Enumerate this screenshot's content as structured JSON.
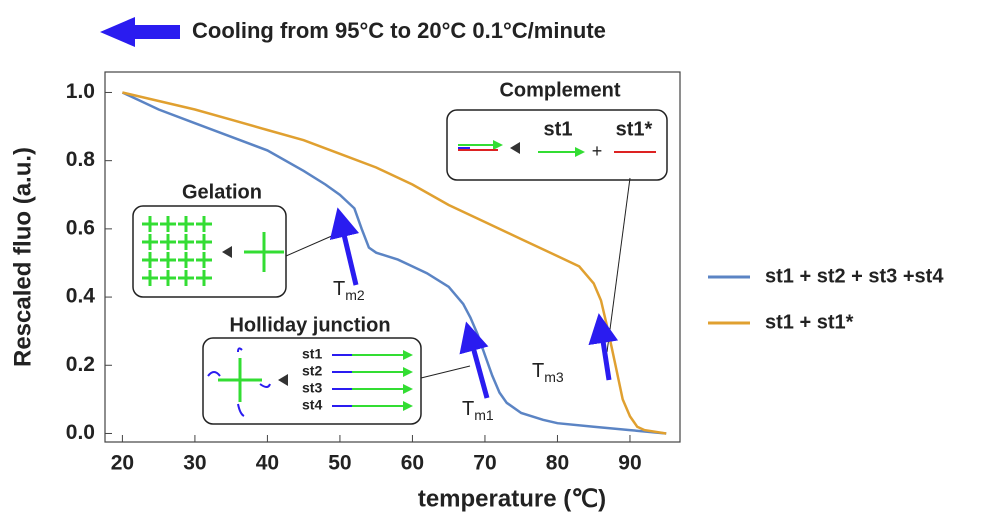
{
  "chart_data": {
    "type": "line",
    "title": "Cooling from 95°C to 20°C 0.1°C/minute",
    "x_label": "temperature (℃)",
    "y_label": "Rescaled fluo (a.u.)",
    "xlim": [
      17.6,
      96.9
    ],
    "ylim": [
      -0.025,
      1.06
    ],
    "xticks": [
      20,
      30,
      40,
      50,
      60,
      70,
      80,
      90
    ],
    "yticks": [
      {
        "value": 0,
        "label": "0.0"
      },
      0.2,
      0.4,
      0.6,
      0.8,
      {
        "value": 1,
        "label": "1.0"
      }
    ],
    "grid": false,
    "legend": "right",
    "series": [
      {
        "name": "st1 + st2 + st3 +st4",
        "color": "#5b84c4",
        "x": [
          20,
          22,
          25,
          30,
          35,
          40,
          45,
          48,
          50,
          52,
          53,
          54,
          55,
          58,
          60,
          62,
          65,
          67,
          68,
          69,
          70,
          71,
          72,
          73,
          75,
          78,
          80,
          85,
          90,
          95
        ],
        "values": [
          1.0,
          0.98,
          0.95,
          0.91,
          0.87,
          0.83,
          0.77,
          0.73,
          0.7,
          0.66,
          0.6,
          0.545,
          0.53,
          0.51,
          0.49,
          0.47,
          0.43,
          0.38,
          0.34,
          0.29,
          0.23,
          0.17,
          0.12,
          0.09,
          0.06,
          0.04,
          0.03,
          0.02,
          0.01,
          0.0
        ]
      },
      {
        "name": "st1 + st1*",
        "color": "#e0a030",
        "x": [
          20,
          25,
          30,
          35,
          40,
          45,
          50,
          55,
          60,
          65,
          70,
          75,
          80,
          83,
          85,
          86,
          87,
          88,
          89,
          90,
          91,
          92,
          95
        ],
        "values": [
          1.0,
          0.975,
          0.95,
          0.92,
          0.89,
          0.86,
          0.82,
          0.78,
          0.73,
          0.67,
          0.62,
          0.57,
          0.52,
          0.49,
          0.44,
          0.39,
          0.3,
          0.2,
          0.1,
          0.05,
          0.02,
          0.01,
          0.0
        ]
      }
    ],
    "annotations": {
      "complement": "Complement",
      "gelation": "Gelation",
      "holliday": "Holliday junction",
      "plus": "+",
      "st1": "st1",
      "st1_star": "st1*",
      "strands": [
        "st1",
        "st2",
        "st3",
        "st4"
      ],
      "tm1": {
        "text": "T",
        "sub": "m1"
      },
      "tm2": {
        "text": "T",
        "sub": "m2"
      },
      "tm3": {
        "text": "T",
        "sub": "m3"
      }
    }
  }
}
